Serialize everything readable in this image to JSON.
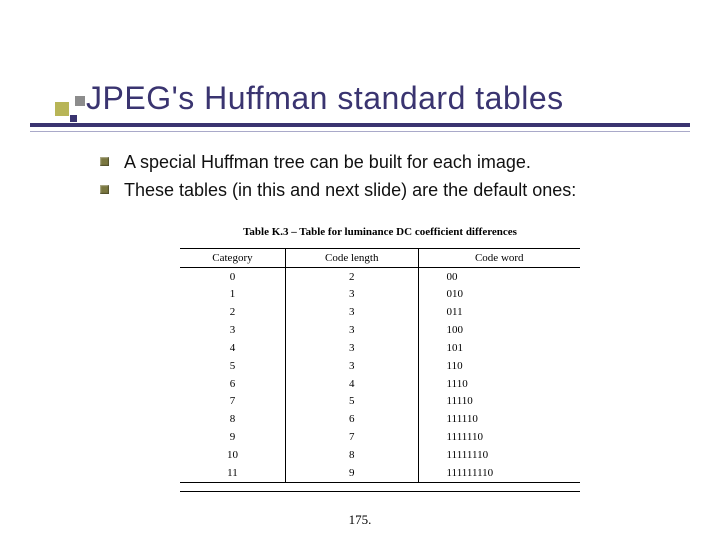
{
  "title": "JPEG's Huffman standard tables",
  "bullets": [
    "A special Huffman tree can be built for each image.",
    "These tables (in this and next slide) are the default ones:"
  ],
  "table": {
    "caption": "Table K.3 – Table for luminance DC coefficient differences",
    "columns": [
      "Category",
      "Code length",
      "Code word"
    ],
    "rows": [
      [
        "0",
        "2",
        "00"
      ],
      [
        "1",
        "3",
        "010"
      ],
      [
        "2",
        "3",
        "011"
      ],
      [
        "3",
        "3",
        "100"
      ],
      [
        "4",
        "3",
        "101"
      ],
      [
        "5",
        "3",
        "110"
      ],
      [
        "6",
        "4",
        "1110"
      ],
      [
        "7",
        "5",
        "11110"
      ],
      [
        "8",
        "6",
        "111110"
      ],
      [
        "9",
        "7",
        "1111110"
      ],
      [
        "10",
        "8",
        "11111110"
      ],
      [
        "11",
        "9",
        "111111110"
      ]
    ]
  },
  "page_number": "175.",
  "colors": {
    "title": "#3a3470",
    "rule_thick": "#3a3470",
    "rule_thin": "#a9a9c9",
    "sq_big": "#b8b557",
    "sq_mid": "#8c8c8c",
    "sq_small": "#3a3470",
    "bullet": "#7a7740"
  }
}
